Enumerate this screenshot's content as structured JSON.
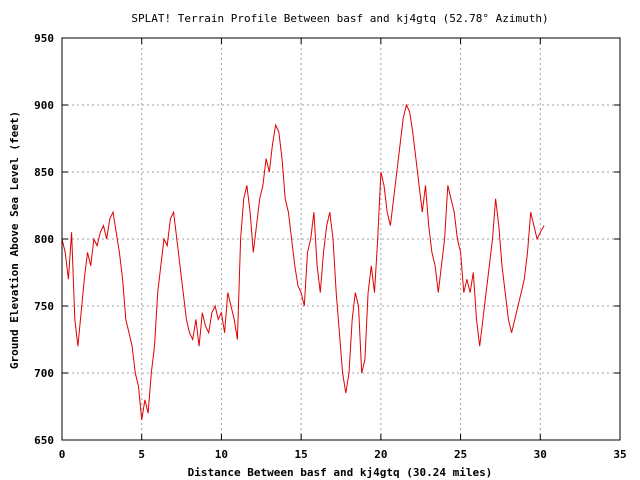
{
  "chart_data": {
    "type": "line",
    "title": "SPLAT! Terrain Profile Between basf and kj4gtq (52.78° Azimuth)",
    "xlabel": "Distance Between basf and kj4gtq (30.24 miles)",
    "ylabel": "Ground Elevation Above Sea Level (feet)",
    "xlim": [
      0,
      35
    ],
    "ylim": [
      650,
      950
    ],
    "xticks": [
      0,
      5,
      10,
      15,
      20,
      25,
      30,
      35
    ],
    "yticks": [
      650,
      700,
      750,
      800,
      850,
      900,
      950
    ],
    "grid": true,
    "series": [
      {
        "color": "#e00000",
        "x": [
          0.0,
          0.2,
          0.4,
          0.6,
          0.8,
          1.0,
          1.2,
          1.4,
          1.6,
          1.8,
          2.0,
          2.2,
          2.4,
          2.6,
          2.8,
          3.0,
          3.2,
          3.4,
          3.6,
          3.8,
          4.0,
          4.2,
          4.4,
          4.6,
          4.8,
          5.0,
          5.2,
          5.4,
          5.6,
          5.8,
          6.0,
          6.2,
          6.4,
          6.6,
          6.8,
          7.0,
          7.2,
          7.4,
          7.6,
          7.8,
          8.0,
          8.2,
          8.4,
          8.6,
          8.8,
          9.0,
          9.2,
          9.4,
          9.6,
          9.8,
          10.0,
          10.2,
          10.4,
          10.6,
          10.8,
          11.0,
          11.2,
          11.4,
          11.6,
          11.8,
          12.0,
          12.2,
          12.4,
          12.6,
          12.8,
          13.0,
          13.2,
          13.4,
          13.6,
          13.8,
          14.0,
          14.2,
          14.4,
          14.6,
          14.8,
          15.0,
          15.2,
          15.4,
          15.6,
          15.8,
          16.0,
          16.2,
          16.4,
          16.6,
          16.8,
          17.0,
          17.2,
          17.4,
          17.6,
          17.8,
          18.0,
          18.2,
          18.4,
          18.6,
          18.8,
          19.0,
          19.2,
          19.4,
          19.6,
          19.8,
          20.0,
          20.2,
          20.4,
          20.6,
          20.8,
          21.0,
          21.2,
          21.4,
          21.6,
          21.8,
          22.0,
          22.2,
          22.4,
          22.6,
          22.8,
          23.0,
          23.2,
          23.4,
          23.6,
          23.8,
          24.0,
          24.2,
          24.4,
          24.6,
          24.8,
          25.0,
          25.2,
          25.4,
          25.6,
          25.8,
          26.0,
          26.2,
          26.4,
          26.6,
          26.8,
          27.0,
          27.2,
          27.4,
          27.6,
          27.8,
          28.0,
          28.2,
          28.4,
          28.6,
          28.8,
          29.0,
          29.2,
          29.4,
          29.6,
          29.8,
          30.0,
          30.24
        ],
        "y": [
          800,
          790,
          770,
          805,
          740,
          720,
          745,
          770,
          790,
          780,
          800,
          795,
          805,
          810,
          800,
          815,
          820,
          805,
          790,
          770,
          740,
          730,
          720,
          700,
          690,
          665,
          680,
          670,
          700,
          720,
          760,
          780,
          800,
          795,
          815,
          820,
          800,
          780,
          760,
          740,
          730,
          725,
          740,
          720,
          745,
          735,
          730,
          745,
          750,
          740,
          745,
          730,
          760,
          750,
          740,
          725,
          800,
          830,
          840,
          820,
          790,
          810,
          830,
          840,
          860,
          850,
          870,
          885,
          880,
          860,
          830,
          820,
          800,
          780,
          765,
          760,
          750,
          790,
          800,
          820,
          780,
          760,
          790,
          810,
          820,
          800,
          760,
          730,
          700,
          685,
          700,
          740,
          760,
          750,
          700,
          710,
          760,
          780,
          760,
          800,
          850,
          840,
          820,
          810,
          830,
          850,
          870,
          890,
          900,
          895,
          880,
          860,
          840,
          820,
          840,
          810,
          790,
          780,
          760,
          780,
          800,
          840,
          830,
          820,
          800,
          790,
          760,
          770,
          760,
          775,
          740,
          720,
          740,
          760,
          780,
          800,
          830,
          810,
          780,
          760,
          740,
          730,
          740,
          750,
          760,
          770,
          790,
          820,
          810,
          800,
          805,
          810
        ]
      }
    ]
  }
}
